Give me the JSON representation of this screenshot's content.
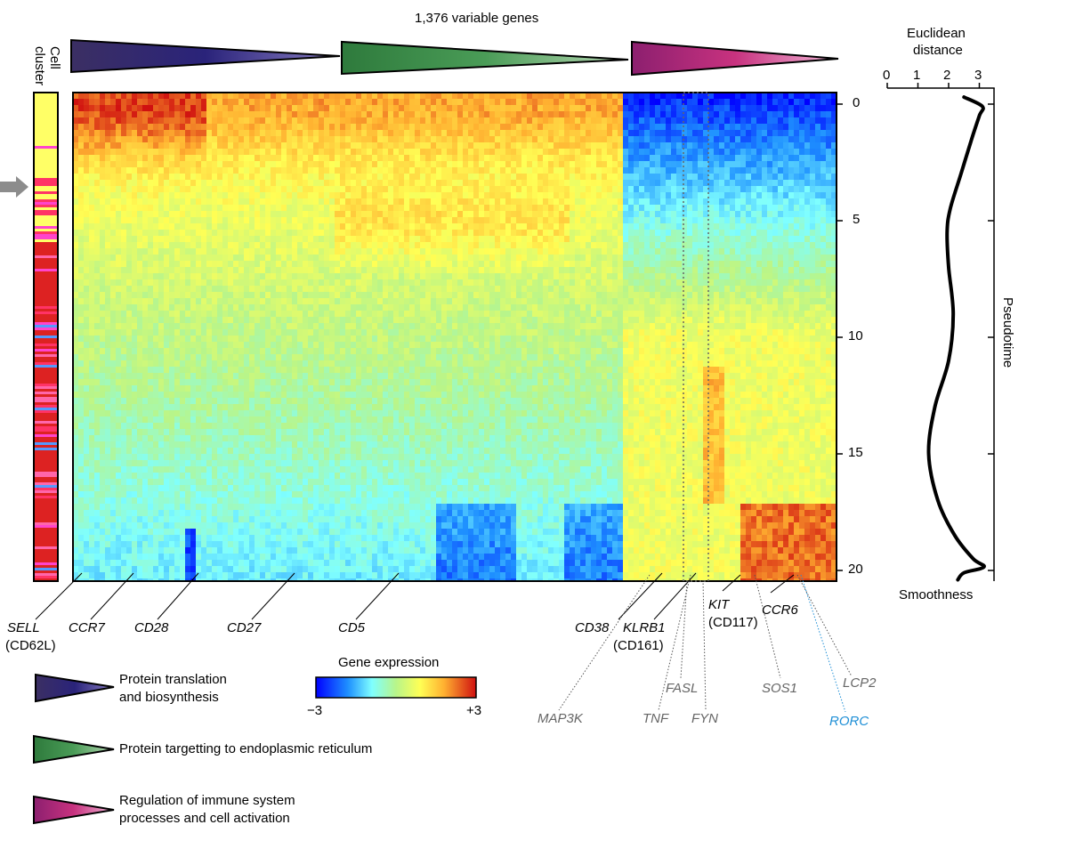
{
  "chart_data": {
    "type": "heatmap",
    "title": "1,376 variable genes",
    "ylabel": "Pseudotime",
    "y_ticks": [
      0,
      5,
      10,
      15,
      20
    ],
    "ylim": [
      0,
      20.3
    ],
    "cluster_label_line1": "Cell",
    "cluster_label_line2": "cluster",
    "colorbar": {
      "title": "Gene expression",
      "min_label": "−3",
      "max_label": "+3",
      "range": [
        -3,
        3
      ]
    },
    "gene_groups": [
      {
        "name": "Protein translation and biosynthesis",
        "line1": "Protein translation",
        "line2": "and biosynthesis",
        "color_start": "#3b2f63",
        "color_end": "#8a7fc4",
        "mid": "#2a237a"
      },
      {
        "name": "Protein targetting to endoplasmic reticulum",
        "line1": "Protein targetting to endoplasmic reticulum",
        "line2": "",
        "color_start": "#2e7a3c",
        "color_end": "#b7d9b4",
        "mid": "#4a9c57"
      },
      {
        "name": "Regulation of immune system processes and cell activation",
        "line1": "Regulation of immune system",
        "line2": "processes and cell activation",
        "color_start": "#8c1f6f",
        "color_end": "#f2b7d8",
        "mid": "#c8327f"
      }
    ],
    "genes_black": [
      {
        "name": "SELL",
        "alias": "(CD62L)"
      },
      {
        "name": "CCR7",
        "alias": ""
      },
      {
        "name": "CD28",
        "alias": ""
      },
      {
        "name": "CD27",
        "alias": ""
      },
      {
        "name": "CD5",
        "alias": ""
      },
      {
        "name": "CD38",
        "alias": ""
      },
      {
        "name": "KLRB1",
        "alias": "(CD161)"
      },
      {
        "name": "KIT",
        "alias": "(CD117)"
      },
      {
        "name": "CCR6",
        "alias": ""
      }
    ],
    "genes_gray": [
      "MAP3K",
      "TNF",
      "FASL",
      "FYN",
      "SOS1",
      "LCP2"
    ],
    "genes_highlight": [
      "RORC"
    ],
    "side_plot": {
      "title_line1": "Euclidean",
      "title_line2": "distance",
      "x_ticks": [
        0,
        1,
        2,
        3
      ],
      "xlim": [
        0,
        3.3
      ],
      "bottom_label": "Smoothness",
      "points": [
        {
          "pseudotime": -0.3,
          "distance": 2.5
        },
        {
          "pseudotime": 0.1,
          "distance": 3.1
        },
        {
          "pseudotime": 0.5,
          "distance": 3.0
        },
        {
          "pseudotime": 1.5,
          "distance": 2.75
        },
        {
          "pseudotime": 3.0,
          "distance": 2.4
        },
        {
          "pseudotime": 4.5,
          "distance": 2.05
        },
        {
          "pseudotime": 5.5,
          "distance": 1.95
        },
        {
          "pseudotime": 7.0,
          "distance": 2.0
        },
        {
          "pseudotime": 9.0,
          "distance": 2.15
        },
        {
          "pseudotime": 11.0,
          "distance": 2.0
        },
        {
          "pseudotime": 13.0,
          "distance": 1.55
        },
        {
          "pseudotime": 15.0,
          "distance": 1.35
        },
        {
          "pseudotime": 17.0,
          "distance": 1.65
        },
        {
          "pseudotime": 18.5,
          "distance": 2.2
        },
        {
          "pseudotime": 19.5,
          "distance": 2.8
        },
        {
          "pseudotime": 19.85,
          "distance": 3.15
        },
        {
          "pseudotime": 20.1,
          "distance": 2.5
        },
        {
          "pseudotime": 20.4,
          "distance": 2.3
        }
      ]
    }
  },
  "colors": {
    "text_gray": "#666666",
    "text_highlight": "#1f8fd6",
    "arrow": "#8c8c8c"
  }
}
